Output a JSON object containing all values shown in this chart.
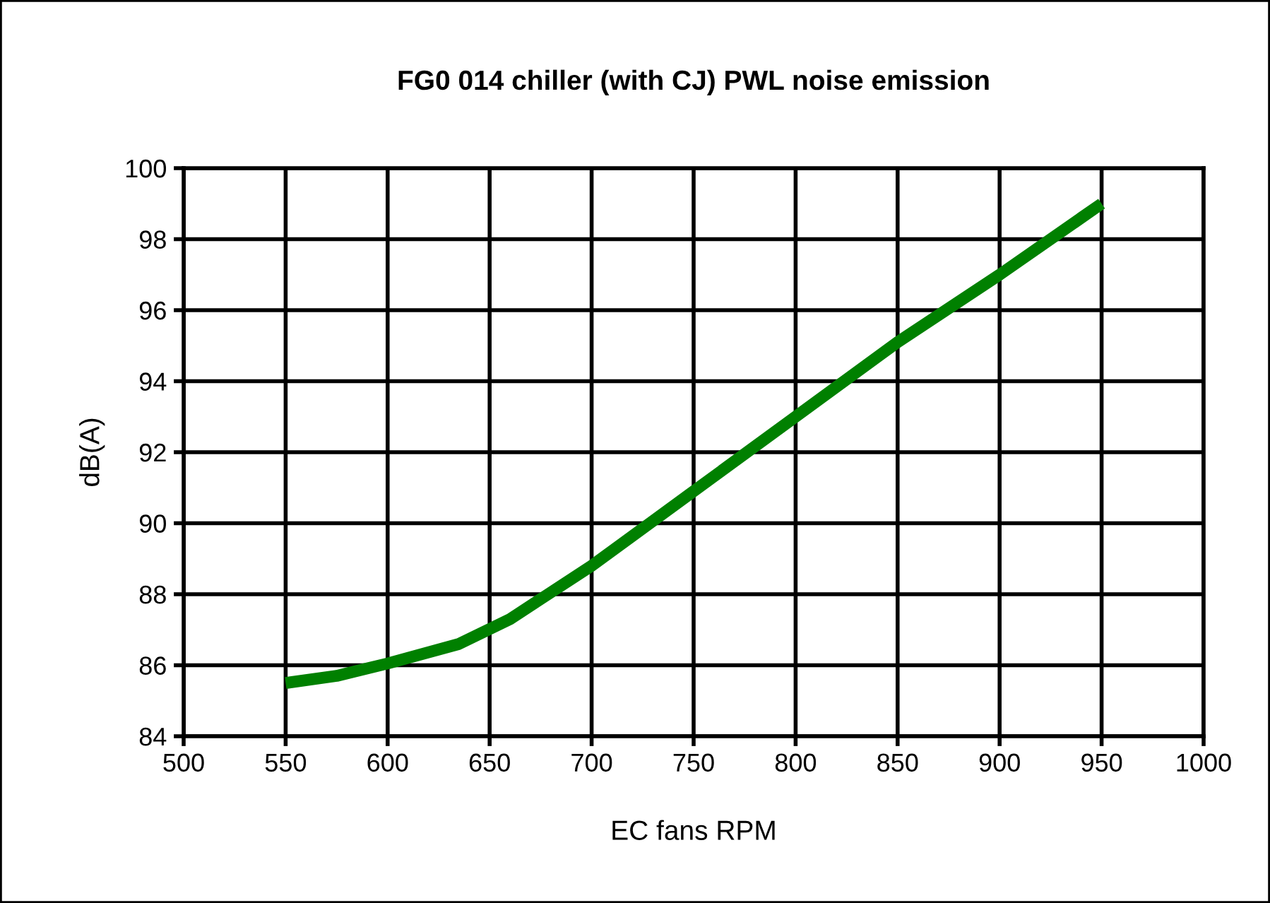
{
  "chart_data": {
    "type": "line",
    "title": "FG0 014 chiller (with CJ) PWL noise emission",
    "xlabel": "EC fans RPM",
    "ylabel": "dB(A)",
    "x": [
      550,
      575,
      600,
      635,
      660,
      700,
      750,
      800,
      850,
      900,
      950
    ],
    "series": [
      {
        "color": "#008000",
        "values": [
          85.5,
          85.7,
          86.05,
          86.6,
          87.3,
          88.8,
          90.9,
          93.0,
          95.1,
          97.0,
          99.0
        ]
      }
    ],
    "xlim": [
      500,
      1000
    ],
    "xticks": [
      500,
      550,
      600,
      650,
      700,
      750,
      800,
      850,
      900,
      950,
      1000
    ],
    "ylim": [
      84,
      100
    ],
    "yticks": [
      84,
      86,
      88,
      90,
      92,
      94,
      96,
      98,
      100
    ],
    "grid": true,
    "marker": "none",
    "line_style": "solid"
  }
}
